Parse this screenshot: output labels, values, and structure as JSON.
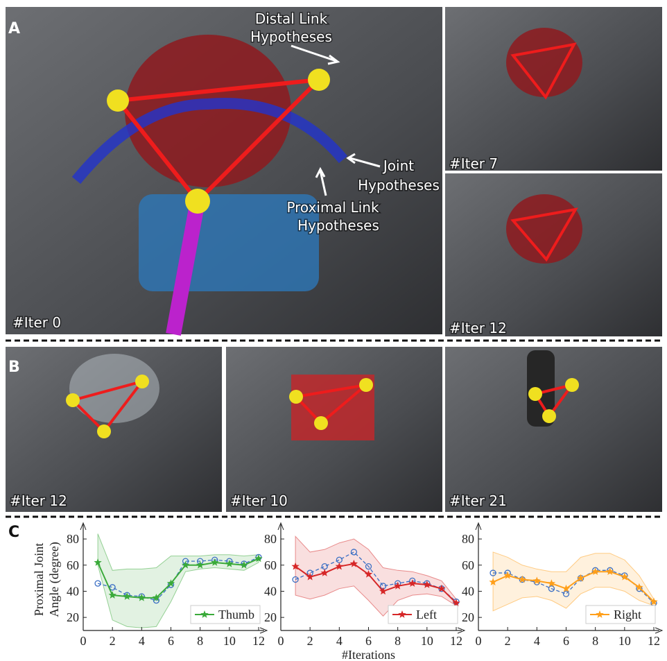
{
  "panels": [
    {
      "label": "A",
      "annotations": [
        {
          "lines": [
            "Distal Link",
            "Hypotheses"
          ]
        },
        {
          "lines": [
            "Joint",
            "Hypotheses"
          ]
        },
        {
          "lines": [
            "Proximal Link",
            "Hypotheses"
          ]
        }
      ],
      "captions": [
        "#Iter 0",
        "#Iter 7",
        "#Iter 12"
      ]
    },
    {
      "label": "B",
      "captions": [
        "#Iter 12",
        "#Iter 10",
        "#Iter 21"
      ]
    },
    {
      "label": "C"
    }
  ],
  "chart_data": [
    {
      "type": "line",
      "ylabel": [
        "Proximal Joint",
        "Angle (degree)"
      ],
      "x": [
        1,
        2,
        3,
        4,
        5,
        6,
        7,
        8,
        9,
        10,
        11,
        12
      ],
      "xlim": [
        0,
        12
      ],
      "xticks": [
        0,
        2,
        4,
        6,
        8,
        10,
        12
      ],
      "ylim": [
        10,
        88
      ],
      "yticks": [
        20,
        40,
        60,
        80
      ],
      "legend": "lower right",
      "band": {
        "color": "#3aaa3a",
        "low": [
          60,
          18,
          13,
          12,
          13,
          32,
          55,
          57,
          58,
          57,
          56,
          62
        ],
        "high": [
          84,
          56,
          57,
          57,
          58,
          67,
          67,
          67,
          68,
          68,
          67,
          68
        ]
      },
      "series": [
        {
          "name": "Thumb",
          "color": "#3aaa3a",
          "marker": "star",
          "style": "solid",
          "values": [
            62,
            37,
            36,
            35,
            35,
            46,
            60,
            60,
            62,
            61,
            60,
            65
          ]
        },
        {
          "color": "#3b6fc4",
          "marker": "circle",
          "style": "dashed",
          "values": [
            46,
            43,
            37,
            36,
            33,
            45,
            63,
            63,
            64,
            63,
            61,
            66
          ]
        }
      ]
    },
    {
      "type": "line",
      "xlabel": "#Iterations",
      "x": [
        1,
        2,
        3,
        4,
        5,
        6,
        7,
        8,
        9,
        10,
        11,
        12
      ],
      "xlim": [
        0,
        12
      ],
      "xticks": [
        0,
        2,
        4,
        6,
        8,
        10,
        12
      ],
      "ylim": [
        10,
        88
      ],
      "yticks": [
        20,
        40,
        60,
        80
      ],
      "legend": "lower right",
      "band": {
        "color": "#d62728",
        "low": [
          37,
          34,
          37,
          42,
          44,
          33,
          21,
          33,
          37,
          38,
          36,
          29
        ],
        "high": [
          82,
          70,
          72,
          77,
          80,
          72,
          58,
          56,
          55,
          52,
          48,
          34
        ]
      },
      "series": [
        {
          "name": "Left",
          "color": "#d62728",
          "marker": "star",
          "style": "solid",
          "values": [
            59,
            51,
            54,
            59,
            61,
            53,
            40,
            44,
            46,
            45,
            42,
            31
          ]
        },
        {
          "color": "#3b6fc4",
          "marker": "circle",
          "style": "dashed",
          "values": [
            49,
            54,
            59,
            64,
            70,
            59,
            44,
            46,
            48,
            46,
            42,
            32
          ]
        }
      ]
    },
    {
      "type": "line",
      "x": [
        1,
        2,
        3,
        4,
        5,
        6,
        7,
        8,
        9,
        10,
        11,
        12
      ],
      "xlim": [
        0,
        12
      ],
      "xticks": [
        0,
        2,
        4,
        6,
        8,
        10,
        12
      ],
      "ylim": [
        10,
        88
      ],
      "yticks": [
        20,
        40,
        60,
        80
      ],
      "legend": "lower right",
      "band": {
        "color": "#ff9f1a",
        "low": [
          25,
          30,
          35,
          36,
          33,
          27,
          38,
          43,
          43,
          40,
          33,
          29
        ],
        "high": [
          70,
          66,
          60,
          57,
          55,
          55,
          66,
          69,
          69,
          64,
          52,
          34
        ]
      },
      "series": [
        {
          "name": "Right",
          "color": "#ff9f1a",
          "marker": "star",
          "style": "solid",
          "values": [
            47,
            52,
            49,
            48,
            46,
            42,
            50,
            55,
            55,
            51,
            43,
            32
          ]
        },
        {
          "color": "#3b6fc4",
          "marker": "circle",
          "style": "dashed",
          "values": [
            54,
            54,
            49,
            47,
            42,
            38,
            50,
            56,
            56,
            52,
            42,
            31
          ]
        }
      ]
    }
  ]
}
